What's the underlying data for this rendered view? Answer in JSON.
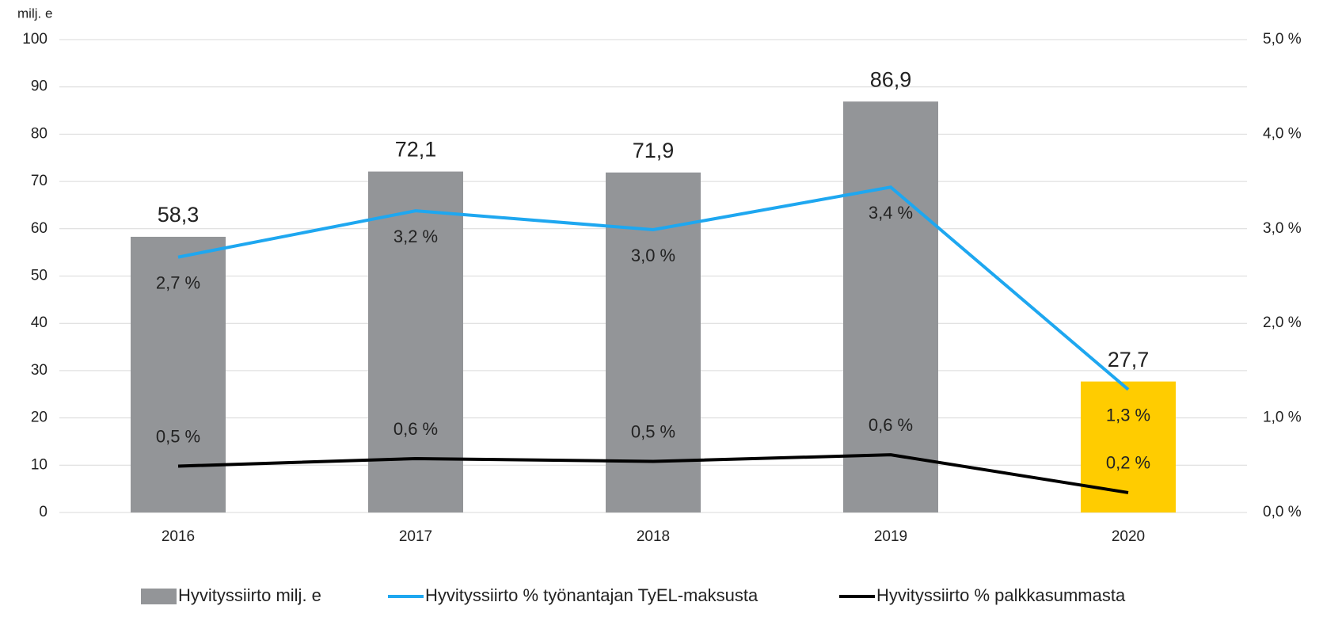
{
  "chart_data": {
    "type": "bar",
    "y_axis_label": "milj. e",
    "categories": [
      "2016",
      "2017",
      "2018",
      "2019",
      "2020"
    ],
    "series": [
      {
        "name": "Hyvityssiirto milj. e",
        "type": "bar",
        "color": "#939598",
        "colors": [
          "#939598",
          "#939598",
          "#939598",
          "#939598",
          "#ffcc00"
        ],
        "values": [
          58.3,
          72.1,
          71.9,
          86.9,
          27.7
        ],
        "value_labels": [
          "58,3",
          "72,1",
          "71,9",
          "86,9",
          "27,7"
        ]
      },
      {
        "name": "Hyvityssiirto % työnantajan TyEL-maksusta",
        "type": "line",
        "axis": "y2",
        "color": "#1ea7f0",
        "label_side": "below",
        "values": [
          2.7,
          3.19,
          2.99,
          3.44,
          1.3
        ],
        "value_labels": [
          "2,7 %",
          "3,2 %",
          "3,0 %",
          "3,4 %",
          "1,3 %"
        ]
      },
      {
        "name": "Hyvityssiirto % palkkasummasta",
        "type": "line",
        "axis": "y2",
        "color": "#000000",
        "label_side": "above",
        "values": [
          0.49,
          0.57,
          0.54,
          0.61,
          0.21
        ],
        "value_labels": [
          "0,5 %",
          "0,6 %",
          "0,5 %",
          "0,6 %",
          "0,2 %"
        ]
      }
    ],
    "ylim": [
      0,
      100
    ],
    "yticks": [
      0,
      10,
      20,
      30,
      40,
      50,
      60,
      70,
      80,
      90,
      100
    ],
    "y2lim": [
      0,
      5
    ],
    "y2ticks": [
      {
        "value": 0,
        "label": "0,0 %"
      },
      {
        "value": 1,
        "label": "1,0 %"
      },
      {
        "value": 2,
        "label": "2,0 %"
      },
      {
        "value": 3,
        "label": "3,0 %"
      },
      {
        "value": 4,
        "label": "4,0 %"
      },
      {
        "value": 5,
        "label": "5,0 %"
      }
    ],
    "grid": true,
    "legend": "bottom"
  }
}
